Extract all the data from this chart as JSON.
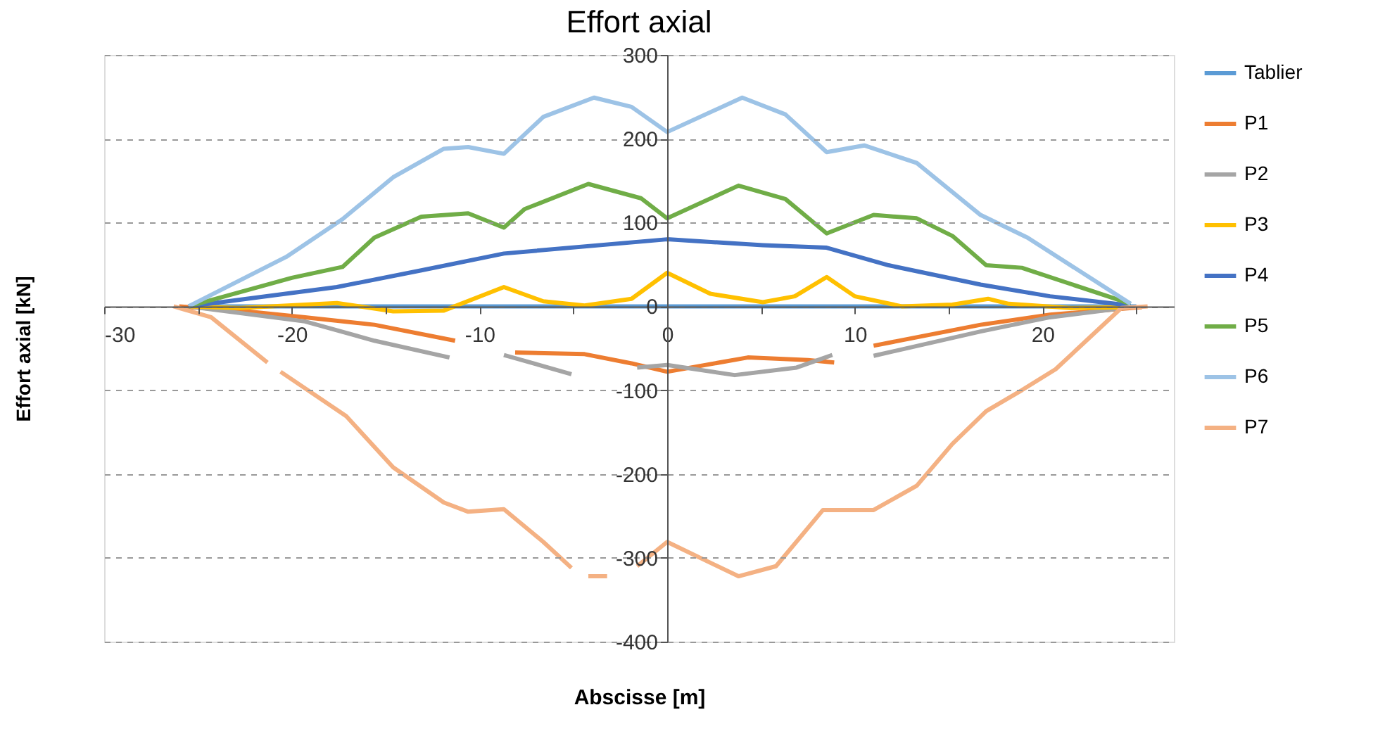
{
  "chart_data": {
    "type": "line",
    "title": "Effort axial",
    "xlabel": "Abscisse [m]",
    "ylabel": "Effort axial [kN]",
    "xlim": [
      -30,
      27
    ],
    "xticks": [
      -30,
      {
        "value": -25,
        "label": null
      },
      -20,
      {
        "value": -15,
        "label": null
      },
      -10,
      {
        "value": -5,
        "label": null
      },
      0,
      {
        "value": 5,
        "label": null
      },
      10,
      {
        "value": 15,
        "label": null
      },
      20,
      {
        "value": 25,
        "label": null
      }
    ],
    "ylim": [
      -400,
      300
    ],
    "yticks": [
      -400,
      -300,
      -200,
      -100,
      0,
      100,
      200,
      300
    ],
    "grid": "y",
    "legend": "right",
    "marker": "none",
    "line_style": "solid",
    "series": [
      {
        "name": "Tablier",
        "color": "#5b9bd5",
        "x": [
          -25.5,
          -10,
          0,
          10,
          25
        ],
        "values": [
          0,
          0,
          0,
          0,
          0
        ]
      },
      {
        "name": "P1",
        "color": "#ed7d31",
        "x": [
          -26,
          -22.8,
          -19.3,
          -15.6,
          -11.3,
          -10,
          -8.1,
          -4.4,
          -1.9,
          0,
          4.3,
          7.5,
          8.9,
          10,
          11,
          16.7,
          20.4,
          25.3
        ],
        "values": [
          0,
          -5,
          -13,
          -22,
          -41,
          null,
          -55,
          -57,
          -68,
          -78,
          -61,
          -64,
          -67,
          null,
          -47,
          -22,
          -10,
          -1
        ]
      },
      {
        "name": "P2",
        "color": "#a5a5a5",
        "x": [
          -25.5,
          -19.3,
          -15.6,
          -11.6,
          -10,
          -8.7,
          -5.1,
          -3,
          -1.6,
          0,
          3.6,
          6.9,
          8.8,
          10,
          11,
          16.7,
          20.4,
          24.7
        ],
        "values": [
          0,
          -18,
          -41,
          -61,
          null,
          -58,
          -81,
          null,
          -73,
          -70,
          -82,
          -73,
          -58,
          null,
          -59,
          -30,
          -13,
          -1
        ]
      },
      {
        "name": "P3",
        "color": "#ffc000",
        "x": [
          -25.5,
          -22.8,
          -17.6,
          -14.6,
          -11.9,
          -8.7,
          -6.6,
          -4.4,
          -1.9,
          0,
          2.3,
          5.1,
          6.8,
          8.5,
          10,
          12.5,
          15.2,
          17.1,
          18.2,
          21.5,
          24.7
        ],
        "values": [
          0,
          -2,
          4,
          -6,
          -5,
          23,
          6,
          1,
          9,
          40,
          15,
          5,
          12,
          35,
          12,
          0,
          2,
          9,
          3,
          -2,
          -1
        ]
      },
      {
        "name": "P4",
        "color": "#4472c4",
        "x": [
          -25.5,
          -17.6,
          -13.1,
          -8.7,
          0,
          5.1,
          8.5,
          11.8,
          16.7,
          20.4,
          24.7
        ],
        "values": [
          0,
          23,
          43,
          63,
          80,
          73,
          70,
          49,
          26,
          12,
          1
        ]
      },
      {
        "name": "P5",
        "color": "#70ad47",
        "x": [
          -25.5,
          -20,
          -17.3,
          -15.6,
          -13.1,
          -10.6,
          -8.7,
          -7.6,
          -4.2,
          -1.4,
          0,
          3.8,
          6.3,
          8.5,
          11,
          13.3,
          15.2,
          17,
          18.9,
          24.7
        ],
        "values": [
          0,
          34,
          47,
          82,
          107,
          111,
          94,
          116,
          146,
          129,
          105,
          144,
          128,
          87,
          109,
          105,
          84,
          49,
          46,
          3
        ]
      },
      {
        "name": "P6",
        "color": "#9dc3e6",
        "x": [
          -25.5,
          -20.3,
          -17.3,
          -14.6,
          -11.9,
          -10.6,
          -8.7,
          -6.6,
          -3.9,
          -1.9,
          0,
          4,
          6.3,
          8.5,
          10.5,
          13.3,
          16.7,
          19.2,
          24.7
        ],
        "values": [
          0,
          59,
          104,
          154,
          188,
          190,
          182,
          226,
          249,
          238,
          208,
          249,
          229,
          184,
          192,
          171,
          109,
          82,
          3
        ]
      },
      {
        "name": "P7",
        "color": "#f4b183",
        "x": [
          -26.3,
          -24.3,
          -21.3,
          -21,
          -20.6,
          -17.1,
          -14.6,
          -11.9,
          -10.6,
          -8.7,
          -6.6,
          -5.1,
          -4.4,
          -4.2,
          -3.2,
          -2.4,
          -1.6,
          0,
          3.8,
          5.8,
          8.3,
          11,
          13.3,
          15.2,
          17,
          18.9,
          20.7,
          24.2,
          25.6
        ],
        "values": [
          0,
          -13,
          -67,
          null,
          -78,
          -131,
          -192,
          -234,
          -245,
          -242,
          -281,
          -312,
          null,
          -322,
          -322,
          null,
          -310,
          -281,
          -322,
          -310,
          -243,
          -243,
          -214,
          -164,
          -125,
          -100,
          -75,
          -2,
          0
        ]
      }
    ]
  }
}
